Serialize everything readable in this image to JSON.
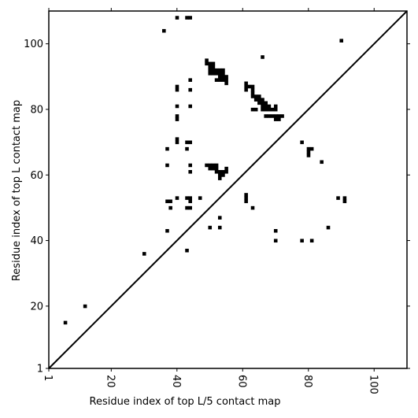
{
  "chart_data": {
    "type": "scatter",
    "marker": "square",
    "marker_color": "#000000",
    "xlabel": "Residue index of top L/5 contact map",
    "ylabel": "Residue index of top L contact map",
    "xlim": [
      1,
      110
    ],
    "ylim": [
      1,
      110
    ],
    "xticks": [
      1,
      20,
      40,
      60,
      80,
      100
    ],
    "yticks": [
      1,
      20,
      40,
      60,
      80,
      100
    ],
    "xtick_rotation": "vertical",
    "grid": false,
    "legend": "none",
    "diagonal": {
      "from": [
        1,
        1
      ],
      "to": [
        110,
        110
      ],
      "color": "#000000"
    },
    "points": [
      [
        6,
        15
      ],
      [
        12,
        20
      ],
      [
        30,
        36
      ],
      [
        36,
        104
      ],
      [
        37,
        68
      ],
      [
        37,
        63
      ],
      [
        37,
        43
      ],
      [
        37,
        52
      ],
      [
        38,
        52
      ],
      [
        38,
        50
      ],
      [
        40,
        108
      ],
      [
        40,
        87
      ],
      [
        40,
        86
      ],
      [
        40,
        81
      ],
      [
        40,
        78
      ],
      [
        40,
        77
      ],
      [
        40,
        71
      ],
      [
        40,
        70
      ],
      [
        40,
        53
      ],
      [
        43,
        108
      ],
      [
        44,
        108
      ],
      [
        44,
        89
      ],
      [
        44,
        86
      ],
      [
        44,
        81
      ],
      [
        43,
        70
      ],
      [
        44,
        70
      ],
      [
        43,
        68
      ],
      [
        44,
        63
      ],
      [
        44,
        61
      ],
      [
        43,
        53
      ],
      [
        44,
        53
      ],
      [
        44,
        52
      ],
      [
        43,
        50
      ],
      [
        44,
        50
      ],
      [
        43,
        37
      ],
      [
        47,
        53
      ],
      [
        49,
        95
      ],
      [
        49,
        94
      ],
      [
        50,
        94
      ],
      [
        51,
        94
      ],
      [
        50,
        93
      ],
      [
        51,
        93
      ],
      [
        50,
        92
      ],
      [
        51,
        92
      ],
      [
        52,
        92
      ],
      [
        53,
        92
      ],
      [
        54,
        92
      ],
      [
        50,
        91
      ],
      [
        51,
        91
      ],
      [
        52,
        91
      ],
      [
        53,
        91
      ],
      [
        54,
        91
      ],
      [
        53,
        90
      ],
      [
        54,
        90
      ],
      [
        55,
        90
      ],
      [
        52,
        89
      ],
      [
        53,
        89
      ],
      [
        54,
        89
      ],
      [
        55,
        89
      ],
      [
        55,
        88
      ],
      [
        49,
        63
      ],
      [
        50,
        63
      ],
      [
        51,
        63
      ],
      [
        52,
        63
      ],
      [
        50,
        62
      ],
      [
        51,
        62
      ],
      [
        52,
        62
      ],
      [
        55,
        62
      ],
      [
        52,
        61
      ],
      [
        53,
        61
      ],
      [
        54,
        61
      ],
      [
        55,
        61
      ],
      [
        53,
        60
      ],
      [
        54,
        60
      ],
      [
        53,
        59
      ],
      [
        53,
        47
      ],
      [
        50,
        44
      ],
      [
        53,
        44
      ],
      [
        61,
        88
      ],
      [
        61,
        87
      ],
      [
        62,
        87
      ],
      [
        63,
        87
      ],
      [
        61,
        86
      ],
      [
        63,
        86
      ],
      [
        63,
        85
      ],
      [
        63,
        84
      ],
      [
        64,
        84
      ],
      [
        65,
        84
      ],
      [
        64,
        83
      ],
      [
        65,
        83
      ],
      [
        66,
        83
      ],
      [
        65,
        82
      ],
      [
        66,
        82
      ],
      [
        67,
        82
      ],
      [
        66,
        81
      ],
      [
        67,
        81
      ],
      [
        68,
        81
      ],
      [
        70,
        81
      ],
      [
        66,
        80
      ],
      [
        67,
        80
      ],
      [
        68,
        80
      ],
      [
        69,
        80
      ],
      [
        70,
        80
      ],
      [
        63,
        80
      ],
      [
        64,
        80
      ],
      [
        67,
        78
      ],
      [
        68,
        78
      ],
      [
        69,
        78
      ],
      [
        70,
        78
      ],
      [
        71,
        78
      ],
      [
        72,
        78
      ],
      [
        70,
        77
      ],
      [
        71,
        77
      ],
      [
        66,
        96
      ],
      [
        61,
        54
      ],
      [
        61,
        53
      ],
      [
        61,
        52
      ],
      [
        63,
        50
      ],
      [
        70,
        43
      ],
      [
        70,
        40
      ],
      [
        78,
        70
      ],
      [
        80,
        68
      ],
      [
        81,
        68
      ],
      [
        80,
        67
      ],
      [
        80,
        66
      ],
      [
        84,
        64
      ],
      [
        78,
        40
      ],
      [
        81,
        40
      ],
      [
        86,
        44
      ],
      [
        89,
        53
      ],
      [
        91,
        53
      ],
      [
        91,
        52
      ],
      [
        90,
        101
      ]
    ]
  }
}
